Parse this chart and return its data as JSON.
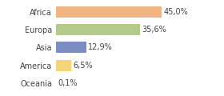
{
  "categories": [
    "Africa",
    "Europa",
    "Asia",
    "America",
    "Oceania"
  ],
  "values": [
    45.0,
    35.6,
    12.9,
    6.5,
    0.1
  ],
  "labels": [
    "45,0%",
    "35,6%",
    "12,9%",
    "6,5%",
    "0,1%"
  ],
  "bar_colors": [
    "#f0b482",
    "#b5c98a",
    "#7b8dc2",
    "#f5d57a",
    "#d0d0d0"
  ],
  "background_color": "#ffffff",
  "xlim": [
    0,
    60
  ],
  "label_fontsize": 7.0,
  "tick_fontsize": 7.0
}
